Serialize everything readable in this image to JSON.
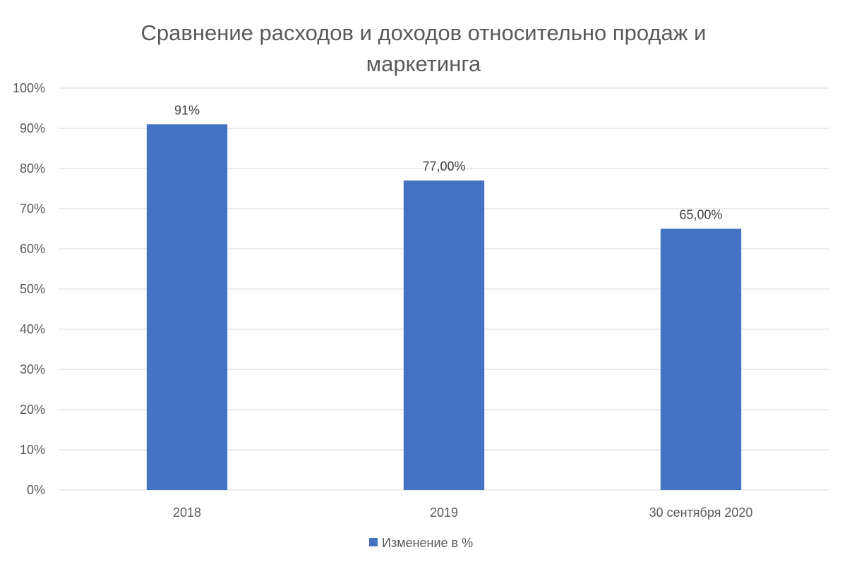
{
  "chart_data": {
    "type": "bar",
    "title_lines": [
      "Сравнение расходов и доходов относительно продаж и",
      "маркетинга"
    ],
    "categories": [
      "2018",
      "2019",
      "30 сентября 2020"
    ],
    "series": [
      {
        "name": "Изменение в %",
        "values": [
          91,
          77,
          65
        ],
        "data_labels": [
          "91%",
          "77,00%",
          "65,00%"
        ],
        "color": "#4472c4"
      }
    ],
    "y_ticks": [
      "0%",
      "10%",
      "20%",
      "30%",
      "40%",
      "50%",
      "60%",
      "70%",
      "80%",
      "90%",
      "100%"
    ],
    "ylim": [
      0,
      100
    ],
    "grid": true,
    "legend_position": "bottom"
  }
}
